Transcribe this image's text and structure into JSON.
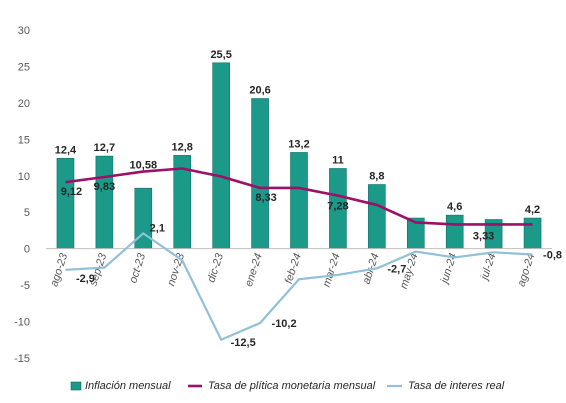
{
  "chart_data": {
    "type": "bar",
    "categories": [
      "ago-23",
      "sep-23",
      "oct-23",
      "nov-23",
      "dic-23",
      "ene-24",
      "feb-24",
      "mar-24",
      "abr-24",
      "may-24",
      "jun-24",
      "jul-24",
      "ago-24"
    ],
    "series": [
      {
        "name": "Inflación mensual",
        "type": "bar",
        "color": "#1B9A8A",
        "values": [
          12.4,
          12.7,
          8.3,
          12.8,
          25.5,
          20.6,
          13.2,
          11.0,
          8.8,
          4.2,
          4.6,
          4.0,
          4.2
        ],
        "labels": [
          "12,4",
          "12,7",
          "",
          "12,8",
          "25,5",
          "20,6",
          "13,2",
          "11",
          "8,8",
          "",
          "4,6",
          "",
          "4,2"
        ]
      },
      {
        "name": "Tasa de plítica monetaria mensual",
        "type": "line",
        "color": "#9E1068",
        "values": [
          9.12,
          9.83,
          10.58,
          11.0,
          9.9,
          8.33,
          8.33,
          7.28,
          6.0,
          3.6,
          3.33,
          3.33,
          3.33
        ],
        "labels": [
          "9,12",
          "9,83",
          "10,58",
          "",
          "",
          "8,33",
          "",
          "7,28",
          "",
          "",
          "",
          "3,33",
          ""
        ]
      },
      {
        "name": "Tasa de interes real",
        "type": "line",
        "color": "#92C0D8",
        "values": [
          -2.9,
          -2.6,
          2.1,
          -1.6,
          -12.5,
          -10.2,
          -4.2,
          -3.6,
          -2.7,
          -0.4,
          -1.2,
          -0.5,
          -0.8
        ],
        "labels": [
          "-2,9",
          "",
          "2,1",
          "",
          "-12,5",
          "-10,2",
          "",
          "",
          "-2,7",
          "",
          "",
          "",
          "-0,8"
        ]
      }
    ],
    "ylim": [
      -15,
      30
    ],
    "yticks": [
      "-15",
      "-10",
      "-5",
      "0",
      "5",
      "10",
      "15",
      "20",
      "25",
      "30"
    ],
    "ytick_values": [
      -15,
      -10,
      -5,
      0,
      5,
      10,
      15,
      20,
      25,
      30
    ],
    "grid": false,
    "legend_position": "bottom"
  }
}
